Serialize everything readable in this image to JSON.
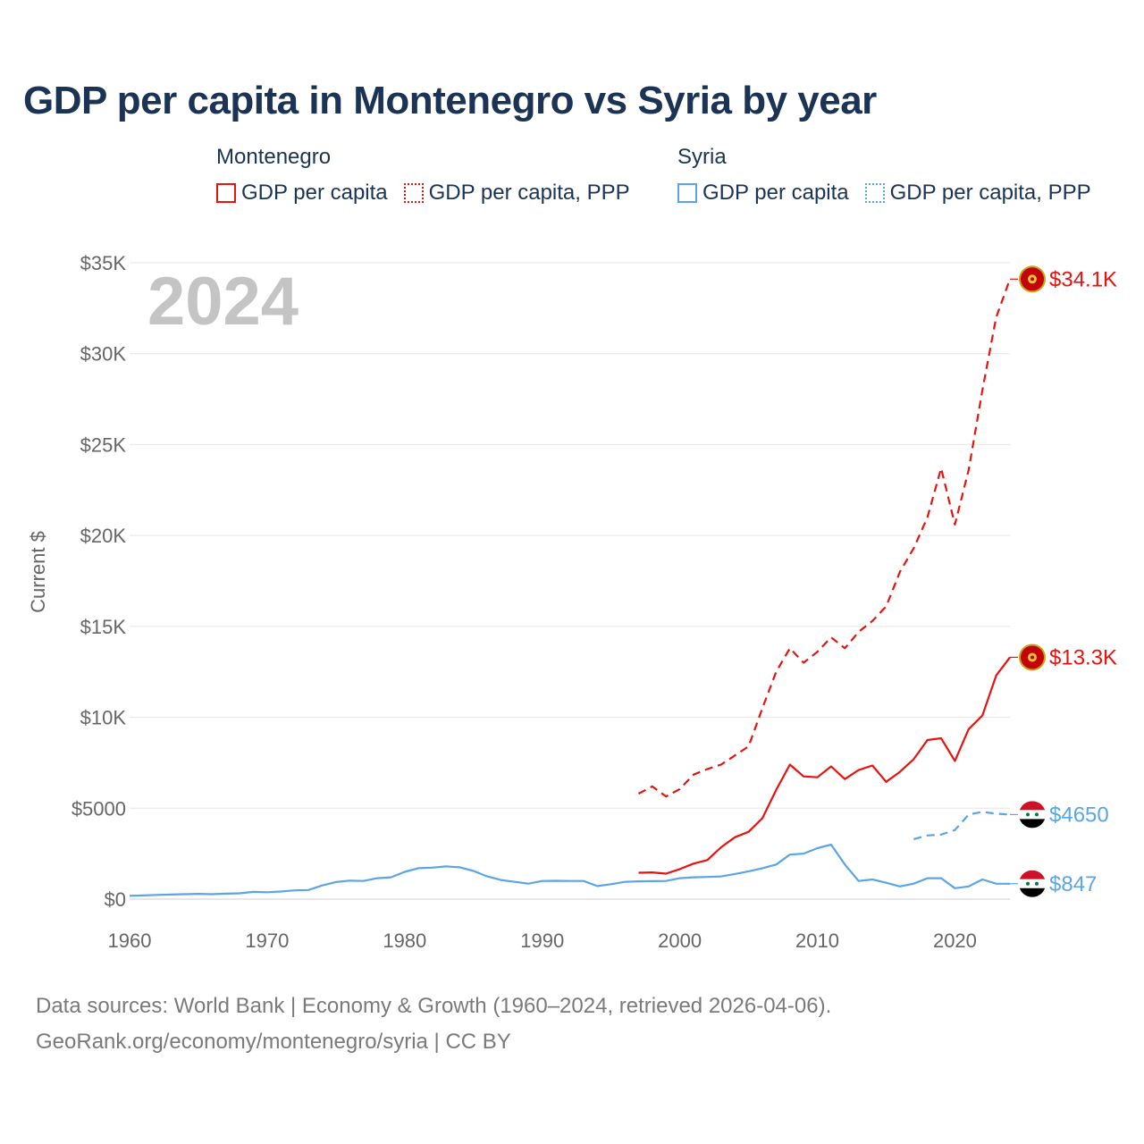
{
  "title": "GDP per capita in Montenegro vs Syria by year",
  "legend": {
    "groups": [
      {
        "name": "Montenegro",
        "color": "#e8130f",
        "items": [
          {
            "label": "GDP per capita",
            "style": "solid"
          },
          {
            "label": "GDP per capita, PPP",
            "style": "dotted"
          }
        ]
      },
      {
        "name": "Syria",
        "color": "#5ba4e5",
        "items": [
          {
            "label": "GDP per capita",
            "style": "solid"
          },
          {
            "label": "GDP per capita, PPP",
            "style": "dotted"
          }
        ]
      }
    ]
  },
  "year_watermark": "2024",
  "footer": {
    "line1": "Data sources: World Bank | Economy & Growth (1960–2024, retrieved 2026-04-06).",
    "line2": "GeoRank.org/economy/montenegro/syria | CC BY"
  },
  "chart_data": {
    "type": "line",
    "title": "GDP per capita in Montenegro vs Syria by year",
    "ylabel": "Current $",
    "xlabel": "",
    "xlim": [
      1960,
      2024
    ],
    "ylim": [
      0,
      35000
    ],
    "x_ticks": [
      1960,
      1970,
      1980,
      1990,
      2000,
      2010,
      2020
    ],
    "y_ticks": [
      {
        "value": 0,
        "label": "$0"
      },
      {
        "value": 5000,
        "label": "$5000"
      },
      {
        "value": 10000,
        "label": "$10K"
      },
      {
        "value": 15000,
        "label": "$15K"
      },
      {
        "value": 20000,
        "label": "$20K"
      },
      {
        "value": 25000,
        "label": "$25K"
      },
      {
        "value": 30000,
        "label": "$30K"
      },
      {
        "value": 35000,
        "label": "$35K"
      }
    ],
    "grid": true,
    "series": [
      {
        "name": "Montenegro GDP per capita, PPP",
        "country": "Montenegro",
        "color": "#e8130f",
        "dash": "dashed",
        "end_label": "$34.1K",
        "x": [
          1997,
          1998,
          1999,
          2000,
          2001,
          2002,
          2003,
          2004,
          2005,
          2006,
          2007,
          2008,
          2009,
          2010,
          2011,
          2012,
          2013,
          2014,
          2015,
          2016,
          2017,
          2018,
          2019,
          2020,
          2021,
          2022,
          2023,
          2024
        ],
        "y": [
          5800,
          6200,
          5650,
          6050,
          6850,
          7150,
          7400,
          7900,
          8400,
          10500,
          12500,
          13800,
          13000,
          13600,
          14400,
          13800,
          14700,
          15300,
          16100,
          18000,
          19300,
          21000,
          23700,
          20600,
          23600,
          28000,
          32000,
          34100
        ]
      },
      {
        "name": "Montenegro GDP per capita",
        "country": "Montenegro",
        "color": "#e8130f",
        "dash": "solid",
        "end_label": "$13.3K",
        "x": [
          1997,
          1998,
          1999,
          2000,
          2001,
          2002,
          2003,
          2004,
          2005,
          2006,
          2007,
          2008,
          2009,
          2010,
          2011,
          2012,
          2013,
          2014,
          2015,
          2016,
          2017,
          2018,
          2019,
          2020,
          2021,
          2022,
          2023,
          2024
        ],
        "y": [
          1450,
          1470,
          1400,
          1650,
          1950,
          2150,
          2850,
          3400,
          3700,
          4450,
          6000,
          7400,
          6750,
          6700,
          7300,
          6600,
          7100,
          7350,
          6450,
          7000,
          7700,
          8750,
          8850,
          7600,
          9350,
          10100,
          12300,
          13300
        ]
      },
      {
        "name": "Syria GDP per capita, PPP",
        "country": "Syria",
        "color": "#5ba4e5",
        "dash": "dashed",
        "end_label": "$4650",
        "x": [
          2017,
          2018,
          2019,
          2020,
          2021,
          2022,
          2023,
          2024
        ],
        "y": [
          3300,
          3500,
          3550,
          3800,
          4650,
          4800,
          4700,
          4650
        ]
      },
      {
        "name": "Syria GDP per capita",
        "country": "Syria",
        "color": "#5ba4e5",
        "dash": "solid",
        "end_label": "$847",
        "x": [
          1960,
          1961,
          1962,
          1963,
          1964,
          1965,
          1966,
          1967,
          1968,
          1969,
          1970,
          1971,
          1972,
          1973,
          1974,
          1975,
          1976,
          1977,
          1978,
          1979,
          1980,
          1981,
          1982,
          1983,
          1984,
          1985,
          1986,
          1987,
          1988,
          1989,
          1990,
          1991,
          1992,
          1993,
          1994,
          1995,
          1996,
          1997,
          1998,
          1999,
          2000,
          2001,
          2002,
          2003,
          2004,
          2005,
          2006,
          2007,
          2008,
          2009,
          2010,
          2011,
          2012,
          2013,
          2014,
          2015,
          2016,
          2017,
          2018,
          2019,
          2020,
          2021,
          2022,
          2023,
          2024
        ],
        "y": [
          180,
          200,
          230,
          250,
          270,
          290,
          270,
          300,
          320,
          400,
          380,
          420,
          480,
          500,
          750,
          940,
          1020,
          1000,
          1150,
          1200,
          1500,
          1700,
          1730,
          1800,
          1750,
          1550,
          1250,
          1050,
          950,
          850,
          1000,
          1010,
          1000,
          1000,
          720,
          820,
          950,
          980,
          990,
          1000,
          1150,
          1200,
          1220,
          1250,
          1380,
          1530,
          1700,
          1900,
          2450,
          2500,
          2800,
          3000,
          1900,
          1000,
          1080,
          900,
          700,
          850,
          1150,
          1150,
          600,
          700,
          1080,
          850,
          847
        ]
      }
    ]
  }
}
